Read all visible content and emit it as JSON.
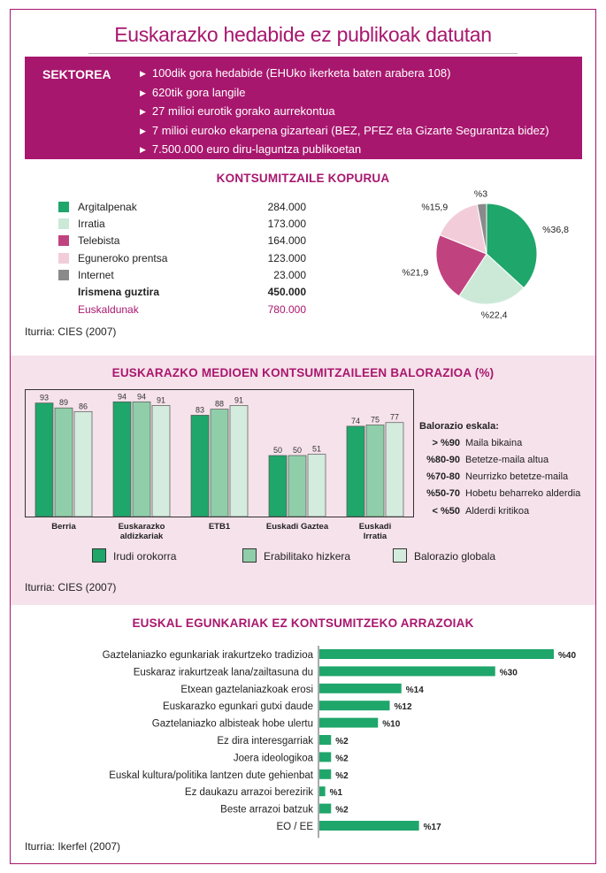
{
  "title": "Euskarazko hedabide ez publikoak datutan",
  "sector": {
    "label": "SEKTOREA",
    "items": [
      "100dik gora hedabide (EHUko ikerketa baten arabera 108)",
      "620tik gora langile",
      "27 milioi eurotik gorako aurrekontua",
      "7 milioi euroko ekarpena gizarteari (BEZ, PFEZ eta Gizarte Segurantza bidez)",
      "7.500.000 euro diru-laguntza publikoetan"
    ]
  },
  "consumers": {
    "heading": "KONTSUMITZAILE KOPURUA",
    "rows": [
      {
        "label": "Argitalpenak",
        "value": "284.000",
        "color": "#1fa66b"
      },
      {
        "label": "Irratia",
        "value": "173.000",
        "color": "#cce9d8"
      },
      {
        "label": "Telebista",
        "value": "164.000",
        "color": "#c0427e"
      },
      {
        "label": "Eguneroko prentsa",
        "value": "123.000",
        "color": "#f2cdd9"
      },
      {
        "label": "Internet",
        "value": "23.000",
        "color": "#8a8a8a"
      }
    ],
    "total": {
      "label": "Irismena guztira",
      "value": "450.000"
    },
    "speakers": {
      "label": "Euskaldunak",
      "value": "780.000"
    },
    "source": "Iturria: CIES (2007)"
  },
  "valuation": {
    "heading": "EUSKARAZKO MEDIOEN KONTSUMITZAILEEN BALORAZIOA (%)",
    "scale_title": "Balorazio eskala:",
    "scale": [
      {
        "key": "> %90",
        "text": "Maila bikaina"
      },
      {
        "key": "%80-90",
        "text": "Betetze-maila altua"
      },
      {
        "key": "%70-80",
        "text": "Neurrizko betetze-maila"
      },
      {
        "key": "%50-70",
        "text": "Hobetu beharreko alderdia"
      },
      {
        "key": "< %50",
        "text": "Alderdi kritikoa"
      }
    ],
    "source": "Iturria: CIES (2007)"
  },
  "reasons": {
    "heading": "EUSKAL EGUNKARIAK EZ KONTSUMITZEKO ARRAZOIAK",
    "source": "Iturria: Ikerfel (2007)"
  },
  "chart_data": [
    {
      "type": "pie",
      "categories": [
        "Argitalpenak",
        "Irratia",
        "Telebista",
        "Eguneroko prentsa",
        "Internet"
      ],
      "values": [
        36.8,
        22.4,
        21.9,
        15.9,
        3
      ],
      "labels": [
        "%36,8",
        "%22,4",
        "%21,9",
        "%15,9",
        "%3"
      ],
      "colors": [
        "#1fa66b",
        "#cce9d8",
        "#c0427e",
        "#f2cdd9",
        "#8a8a8a"
      ]
    },
    {
      "type": "bar",
      "categories": [
        "Berria",
        "Euskarazko aldizkariak",
        "ETB1",
        "Euskadi Gaztea",
        "Euskadi Irratia"
      ],
      "series": [
        {
          "name": "Irudi orokorra",
          "values": [
            93,
            94,
            83,
            50,
            74
          ],
          "color": "#1fa66b"
        },
        {
          "name": "Erabilitako hizkera",
          "values": [
            89,
            94,
            88,
            50,
            75
          ],
          "color": "#8fcea9"
        },
        {
          "name": "Balorazio globala",
          "values": [
            86,
            91,
            91,
            51,
            77
          ],
          "color": "#d4ecdd"
        }
      ],
      "ylim": [
        0,
        100
      ]
    },
    {
      "type": "bar",
      "orientation": "horizontal",
      "categories": [
        "Gaztelaniazko egunkariak irakurtzeko tradizioa",
        "Euskaraz irakurtzeak lana/zailtasuna du",
        "Etxean gaztelaniazkoak erosi",
        "Euskarazko egunkari gutxi daude",
        "Gaztelaniazko albisteak hobe ulertu",
        "Ez dira interesgarriak",
        "Joera ideologikoa",
        "Euskal kultura/politika lantzen dute gehienbat",
        "Ez daukazu arrazoi berezirik",
        "Beste arrazoi batzuk",
        "EO / EE"
      ],
      "values": [
        40,
        30,
        14,
        12,
        10,
        2,
        2,
        2,
        1,
        2,
        17
      ],
      "labels": [
        "%40",
        "%30",
        "%14",
        "%12",
        "%10",
        "%2",
        "%2",
        "%2",
        "%1",
        "%2",
        "%17"
      ],
      "color": "#1fa66b"
    }
  ]
}
